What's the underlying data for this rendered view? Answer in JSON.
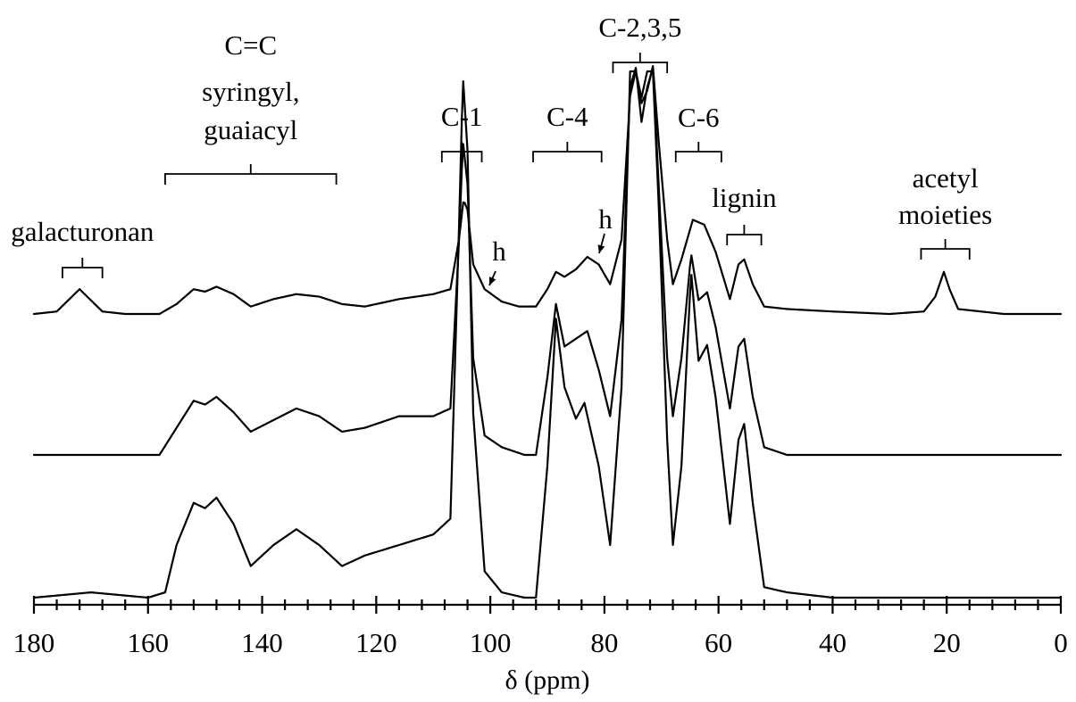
{
  "chart_data": {
    "type": "line",
    "xlabel": "δ (ppm)",
    "xlim": [
      180,
      0
    ],
    "x_reversed": true,
    "ticks": [
      "180",
      "160",
      "140",
      "120",
      "100",
      "80",
      "60",
      "40",
      "20",
      "0"
    ],
    "grid": false,
    "series": [
      {
        "values": [
          [
            180,
            0.0
          ],
          [
            176,
            0.01
          ],
          [
            172,
            0.1
          ],
          [
            168,
            0.01
          ],
          [
            164,
            0.0
          ],
          [
            158,
            0.0
          ],
          [
            155,
            0.04
          ],
          [
            152,
            0.1
          ],
          [
            150,
            0.09
          ],
          [
            148,
            0.11
          ],
          [
            145,
            0.08
          ],
          [
            142,
            0.03
          ],
          [
            138,
            0.06
          ],
          [
            134,
            0.08
          ],
          [
            130,
            0.07
          ],
          [
            126,
            0.04
          ],
          [
            122,
            0.03
          ],
          [
            116,
            0.06
          ],
          [
            110,
            0.08
          ],
          [
            107,
            0.1
          ],
          [
            105.5,
            0.3
          ],
          [
            104.7,
            0.46
          ],
          [
            104,
            0.42
          ],
          [
            103,
            0.2
          ],
          [
            101,
            0.1
          ],
          [
            98,
            0.05
          ],
          [
            95,
            0.03
          ],
          [
            92,
            0.03
          ],
          [
            90,
            0.1
          ],
          [
            88.5,
            0.17
          ],
          [
            87,
            0.15
          ],
          [
            85,
            0.18
          ],
          [
            83,
            0.23
          ],
          [
            81,
            0.2
          ],
          [
            79,
            0.12
          ],
          [
            77,
            0.3
          ],
          [
            75.5,
            0.88
          ],
          [
            74.5,
            0.98
          ],
          [
            73.5,
            0.85
          ],
          [
            72.5,
            0.9
          ],
          [
            71.5,
            1.0
          ],
          [
            70.5,
            0.7
          ],
          [
            69,
            0.3
          ],
          [
            68,
            0.12
          ],
          [
            66.5,
            0.22
          ],
          [
            64.5,
            0.38
          ],
          [
            62.5,
            0.36
          ],
          [
            60.5,
            0.25
          ],
          [
            58,
            0.06
          ],
          [
            56.5,
            0.2
          ],
          [
            55.5,
            0.22
          ],
          [
            54,
            0.12
          ],
          [
            52,
            0.03
          ],
          [
            48,
            0.02
          ],
          [
            40,
            0.01
          ],
          [
            30,
            0.0
          ],
          [
            24,
            0.01
          ],
          [
            22,
            0.07
          ],
          [
            20.5,
            0.17
          ],
          [
            19.5,
            0.1
          ],
          [
            18,
            0.02
          ],
          [
            10,
            0.0
          ],
          [
            0,
            0.0
          ]
        ]
      },
      {
        "values": [
          [
            180,
            0.0
          ],
          [
            164,
            0.0
          ],
          [
            158,
            0.0
          ],
          [
            155,
            0.07
          ],
          [
            152,
            0.14
          ],
          [
            150,
            0.13
          ],
          [
            148,
            0.15
          ],
          [
            145,
            0.11
          ],
          [
            142,
            0.06
          ],
          [
            138,
            0.09
          ],
          [
            134,
            0.12
          ],
          [
            130,
            0.1
          ],
          [
            126,
            0.06
          ],
          [
            122,
            0.07
          ],
          [
            116,
            0.1
          ],
          [
            110,
            0.1
          ],
          [
            107,
            0.12
          ],
          [
            105.5,
            0.55
          ],
          [
            104.8,
            0.81
          ],
          [
            104,
            0.7
          ],
          [
            103,
            0.25
          ],
          [
            101,
            0.05
          ],
          [
            98,
            0.02
          ],
          [
            94,
            0.0
          ],
          [
            92,
            0.0
          ],
          [
            90,
            0.2
          ],
          [
            88.5,
            0.39
          ],
          [
            87,
            0.28
          ],
          [
            85,
            0.3
          ],
          [
            83,
            0.32
          ],
          [
            81,
            0.22
          ],
          [
            79,
            0.1
          ],
          [
            77,
            0.35
          ],
          [
            75.5,
            0.95
          ],
          [
            74.5,
            1.0
          ],
          [
            73.5,
            0.86
          ],
          [
            72.5,
            0.95
          ],
          [
            71.5,
            1.0
          ],
          [
            70.5,
            0.7
          ],
          [
            69,
            0.25
          ],
          [
            68,
            0.1
          ],
          [
            66.5,
            0.25
          ],
          [
            64.8,
            0.52
          ],
          [
            63.5,
            0.4
          ],
          [
            62,
            0.42
          ],
          [
            60.5,
            0.33
          ],
          [
            58,
            0.12
          ],
          [
            56.5,
            0.28
          ],
          [
            55.5,
            0.3
          ],
          [
            54,
            0.15
          ],
          [
            52,
            0.02
          ],
          [
            48,
            0.0
          ],
          [
            40,
            0.0
          ],
          [
            24,
            0.0
          ],
          [
            10,
            0.0
          ],
          [
            0,
            0.0
          ]
        ]
      },
      {
        "values": [
          [
            180,
            0.0
          ],
          [
            170,
            0.01
          ],
          [
            160,
            0.0
          ],
          [
            157,
            0.01
          ],
          [
            155,
            0.1
          ],
          [
            152,
            0.18
          ],
          [
            150,
            0.17
          ],
          [
            148,
            0.19
          ],
          [
            145,
            0.14
          ],
          [
            142,
            0.06
          ],
          [
            138,
            0.1
          ],
          [
            134,
            0.13
          ],
          [
            130,
            0.1
          ],
          [
            126,
            0.06
          ],
          [
            122,
            0.08
          ],
          [
            116,
            0.1
          ],
          [
            110,
            0.12
          ],
          [
            107,
            0.15
          ],
          [
            105.5,
            0.7
          ],
          [
            104.8,
            0.99
          ],
          [
            104,
            0.85
          ],
          [
            103,
            0.35
          ],
          [
            101,
            0.05
          ],
          [
            98,
            0.01
          ],
          [
            94,
            0.0
          ],
          [
            92,
            0.0
          ],
          [
            90,
            0.25
          ],
          [
            88.5,
            0.53
          ],
          [
            87,
            0.4
          ],
          [
            85,
            0.34
          ],
          [
            83.5,
            0.37
          ],
          [
            81,
            0.25
          ],
          [
            79,
            0.1
          ],
          [
            77,
            0.4
          ],
          [
            75.5,
            1.0
          ],
          [
            74.5,
            1.0
          ],
          [
            73.5,
            0.95
          ],
          [
            72.5,
            1.0
          ],
          [
            71.5,
            1.0
          ],
          [
            70.5,
            0.75
          ],
          [
            69,
            0.3
          ],
          [
            68,
            0.1
          ],
          [
            66.5,
            0.25
          ],
          [
            64.8,
            0.62
          ],
          [
            63.5,
            0.45
          ],
          [
            62,
            0.48
          ],
          [
            60.5,
            0.38
          ],
          [
            58,
            0.14
          ],
          [
            56.5,
            0.3
          ],
          [
            55.5,
            0.33
          ],
          [
            54,
            0.18
          ],
          [
            52,
            0.02
          ],
          [
            48,
            0.01
          ],
          [
            40,
            0.0
          ],
          [
            24,
            0.0
          ],
          [
            10,
            0.0
          ],
          [
            0,
            0.0
          ]
        ]
      }
    ],
    "annotations": [
      {
        "id": "galacturonan",
        "lines": [
          "galacturonan"
        ],
        "range": [
          175,
          168
        ]
      },
      {
        "id": "cc",
        "lines": [
          "C=C",
          "syringyl,",
          "guaiacyl"
        ],
        "range": [
          157,
          127
        ]
      },
      {
        "id": "c1",
        "lines": [
          "C-1"
        ],
        "range": [
          108.5,
          101.5
        ]
      },
      {
        "id": "c4",
        "lines": [
          "C-4"
        ],
        "range": [
          92.5,
          80.5
        ]
      },
      {
        "id": "c235",
        "lines": [
          "C-2,3,5"
        ],
        "range": [
          78.5,
          69
        ]
      },
      {
        "id": "c6",
        "lines": [
          "C-6"
        ],
        "range": [
          67.5,
          59.5
        ]
      },
      {
        "id": "lignin",
        "lines": [
          "lignin"
        ],
        "range": [
          58.5,
          52.5
        ]
      },
      {
        "id": "acetyl",
        "lines": [
          "acetyl",
          "moieties"
        ],
        "range": [
          24.5,
          16
        ]
      }
    ],
    "h_markers": [
      {
        "label": "h",
        "at": 100
      },
      {
        "label": "h",
        "at": 81
      }
    ]
  }
}
